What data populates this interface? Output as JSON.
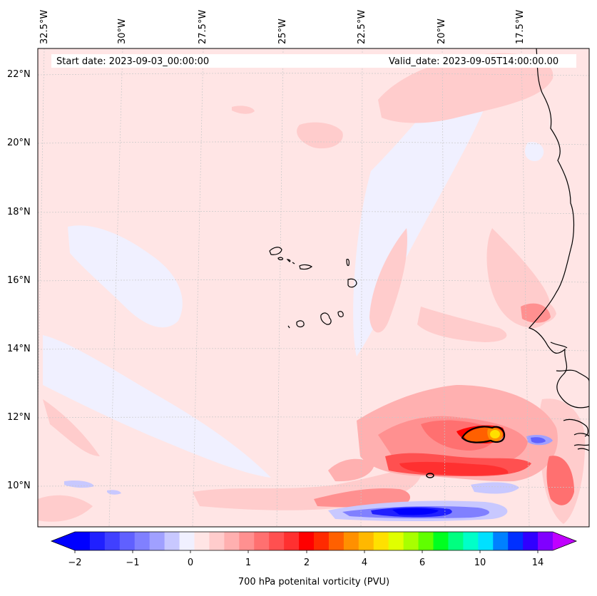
{
  "map": {
    "start_date": "Start date: 2023-09-03_00:00:00",
    "valid_date": "Valid_date: 2023-09-05T14:00:00.00",
    "longitude_labels": [
      "32.5°W",
      "30°W",
      "27.5°W",
      "25°W",
      "22.5°W",
      "20°W",
      "17.5°W"
    ],
    "latitude_labels": [
      "22°N",
      "20°N",
      "18°N",
      "16°N",
      "14°N",
      "12°N",
      "10°N"
    ],
    "variable": "700 hPa potenital vorticity (PVU)",
    "colorbar_ticks": [
      "−2",
      "−1",
      "0",
      "1",
      "2",
      "4",
      "6",
      "10",
      "14"
    ],
    "colorbar_colors": [
      "#0000ff",
      "#2020ff",
      "#4040ff",
      "#6060ff",
      "#8080ff",
      "#a0a0ff",
      "#c8c8ff",
      "#f0f0ff",
      "#ffe5e5",
      "#ffcccc",
      "#ffb0b0",
      "#ff9090",
      "#ff7070",
      "#ff5050",
      "#ff3030",
      "#ff0000",
      "#ff2a00",
      "#ff6000",
      "#ff9000",
      "#ffb800",
      "#ffe000",
      "#e0ff00",
      "#a8ff00",
      "#60ff00",
      "#00ff20",
      "#00ff80",
      "#00ffc8",
      "#00e0ff",
      "#0080ff",
      "#0030ff",
      "#3000ff",
      "#8000ff"
    ],
    "extend_low_color": "#0000ff",
    "extend_high_color": "#c000ff",
    "background_color": "#ffe5e5"
  }
}
